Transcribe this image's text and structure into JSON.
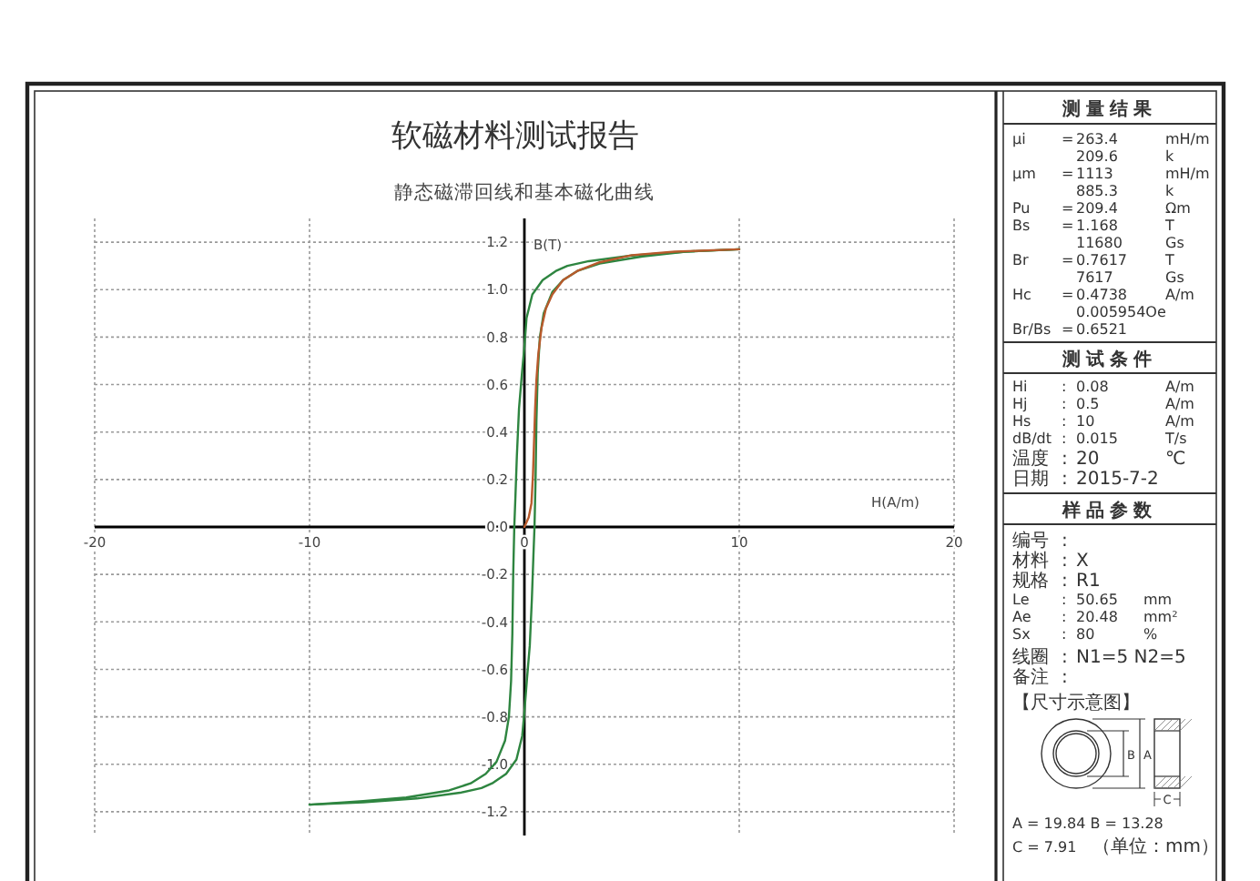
{
  "chart_data": [
    {
      "type": "line",
      "title": "软磁材料测试报告",
      "subtitle": "静态磁滞回线和基本磁化曲线",
      "xlabel": "H(A/m)",
      "ylabel": "B(T)",
      "xlim": [
        -20,
        20
      ],
      "ylim": [
        -1.3,
        1.3
      ],
      "xticks": [
        -20,
        -10,
        0,
        10,
        20
      ],
      "yticks": [
        -1.2,
        {
          "value": -1,
          "label": "-1.0"
        },
        -0.8,
        -0.6,
        -0.4,
        -0.2,
        {
          "value": 0,
          "label": "0.0"
        },
        0.2,
        0.4,
        0.6,
        0.8,
        {
          "value": 1,
          "label": "1.0"
        },
        1.2
      ],
      "grid": true,
      "series": [
        {
          "color": "#2e8540",
          "x": [
            10,
            7.5,
            5,
            3,
            2,
            1.5,
            0.85,
            0.37,
            0.1,
            0,
            -0.12,
            -0.25,
            -0.35,
            -0.42,
            -0.47,
            -0.52,
            -0.56,
            -0.62,
            -0.72,
            -0.9,
            -1.3,
            -1.8,
            -2.5,
            -3.5,
            -5.5,
            -7.5,
            -10
          ],
          "values": [
            1.17,
            1.16,
            1.144,
            1.12,
            1.1,
            1.08,
            1.04,
            0.98,
            0.88,
            0.76,
            0.64,
            0.5,
            0.3,
            0.12,
            0,
            -0.2,
            -0.45,
            -0.65,
            -0.8,
            -0.9,
            -0.99,
            -1.04,
            -1.08,
            -1.11,
            -1.14,
            -1.155,
            -1.17
          ]
        },
        {
          "color": "#2e8540",
          "x": [
            -10,
            -7.5,
            -5,
            -3,
            -2,
            -1.5,
            -0.85,
            -0.37,
            -0.1,
            0,
            0.12,
            0.25,
            0.35,
            0.42,
            0.47,
            0.52,
            0.56,
            0.62,
            0.72,
            0.9,
            1.3,
            1.8,
            2.5,
            3.5,
            5.5,
            7.5,
            10
          ],
          "values": [
            -1.17,
            -1.16,
            -1.144,
            -1.12,
            -1.1,
            -1.08,
            -1.04,
            -0.98,
            -0.88,
            -0.78,
            -0.64,
            -0.5,
            -0.3,
            -0.12,
            0,
            0.2,
            0.45,
            0.65,
            0.8,
            0.9,
            0.99,
            1.04,
            1.08,
            1.11,
            1.14,
            1.16,
            1.17
          ]
        },
        {
          "color": "#b85a2c",
          "x": [
            0,
            0.2,
            0.33,
            0.4,
            0.45,
            0.5,
            0.56,
            0.65,
            0.8,
            1,
            1.3,
            1.8,
            2.5,
            3.5,
            5,
            7,
            10
          ],
          "values": [
            0,
            0.04,
            0.1,
            0.22,
            0.36,
            0.5,
            0.62,
            0.73,
            0.84,
            0.92,
            0.98,
            1.04,
            1.08,
            1.115,
            1.145,
            1.16,
            1.17
          ]
        }
      ]
    },
    {
      "type": "other",
      "title": "测量结果",
      "annotations": [
        "μi = 263.4 mH/m",
        "209.6 k",
        "μm = 1113 mH/m",
        "885.3 k",
        "Pu = 209.4 Ωm",
        "Bs = 1.168 T",
        "11680 Gs",
        "Br = 0.7617 T",
        "7617 Gs",
        "Hc = 0.4738 A/m",
        "0.005954Oe",
        "Br/Bs = 0.6521"
      ]
    },
    {
      "type": "other",
      "title": "测试条件",
      "annotations": [
        "Hi : 0.08 A/m",
        "Hj : 0.5 A/m",
        "Hs : 10 A/m",
        "dB/dt : 0.015 T/s",
        "温度 : 20 ℃",
        "日期 : 2015-7-2"
      ]
    },
    {
      "type": "other",
      "title": "样品参数",
      "annotations": [
        "编号 :",
        "材料 : X",
        "规格 : R1",
        "Le : 50.65 mm",
        "Ae : 20.48 mm²",
        "Sx : 80 %",
        "线圈 : N1=5 N2=5",
        "备注 :",
        "【尺寸示意图】",
        "B",
        "A",
        "C",
        "A = 19.84 B = 13.28",
        "C = 7.91 （单位：mm）"
      ]
    }
  ]
}
